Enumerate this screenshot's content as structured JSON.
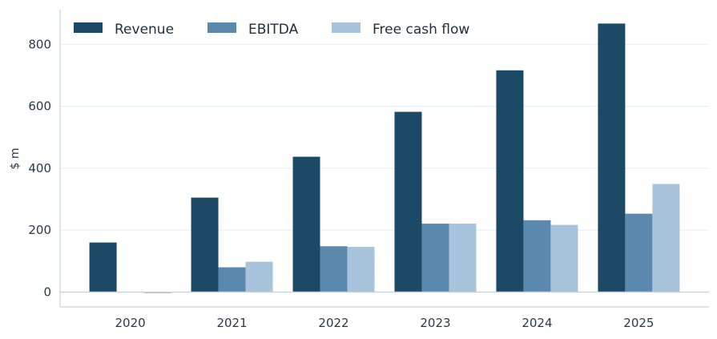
{
  "chart_data": {
    "type": "bar",
    "categories": [
      "2020",
      "2021",
      "2022",
      "2023",
      "2024",
      "2025"
    ],
    "series": [
      {
        "name": "Revenue",
        "values": [
          160,
          305,
          437,
          582,
          716,
          867
        ],
        "color": "#1c4966"
      },
      {
        "name": "EBITDA",
        "values": [
          0,
          80,
          148,
          221,
          232,
          253
        ],
        "color": "#5b89ae"
      },
      {
        "name": "Free cash flow",
        "values": [
          -4,
          98,
          146,
          221,
          217,
          349
        ],
        "color": "#a8c3dc"
      }
    ],
    "title": "",
    "xlabel": "",
    "ylabel": "$ m",
    "ylim": [
      -48,
      912
    ],
    "yticks": [
      0,
      200,
      400,
      600,
      800
    ],
    "grid": "horizontal",
    "legend_position": "top-left"
  }
}
